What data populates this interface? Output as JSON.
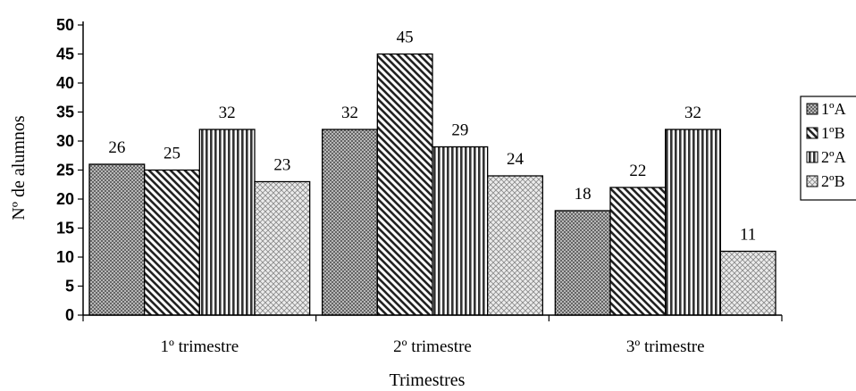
{
  "chart_data": {
    "type": "bar",
    "title": "",
    "xlabel": "Trimestres",
    "ylabel": "Nº de alumnos",
    "ylim": [
      0,
      50
    ],
    "yticks": [
      0,
      5,
      10,
      15,
      20,
      25,
      30,
      35,
      40,
      45,
      50
    ],
    "grid": false,
    "legend_position": "right",
    "categories": [
      "1º  trimestre",
      "2º  trimestre",
      "3º  trimestre"
    ],
    "series": [
      {
        "name": "1ºA",
        "values": [
          26,
          32,
          18
        ],
        "pattern": "crosshatch-dense"
      },
      {
        "name": "1ºB",
        "values": [
          25,
          45,
          22
        ],
        "pattern": "diagonal-stripes"
      },
      {
        "name": "2ºA",
        "values": [
          32,
          29,
          32
        ],
        "pattern": "vertical-stripes"
      },
      {
        "name": "2ºB",
        "values": [
          23,
          24,
          11
        ],
        "pattern": "light-crosshatch"
      }
    ]
  }
}
